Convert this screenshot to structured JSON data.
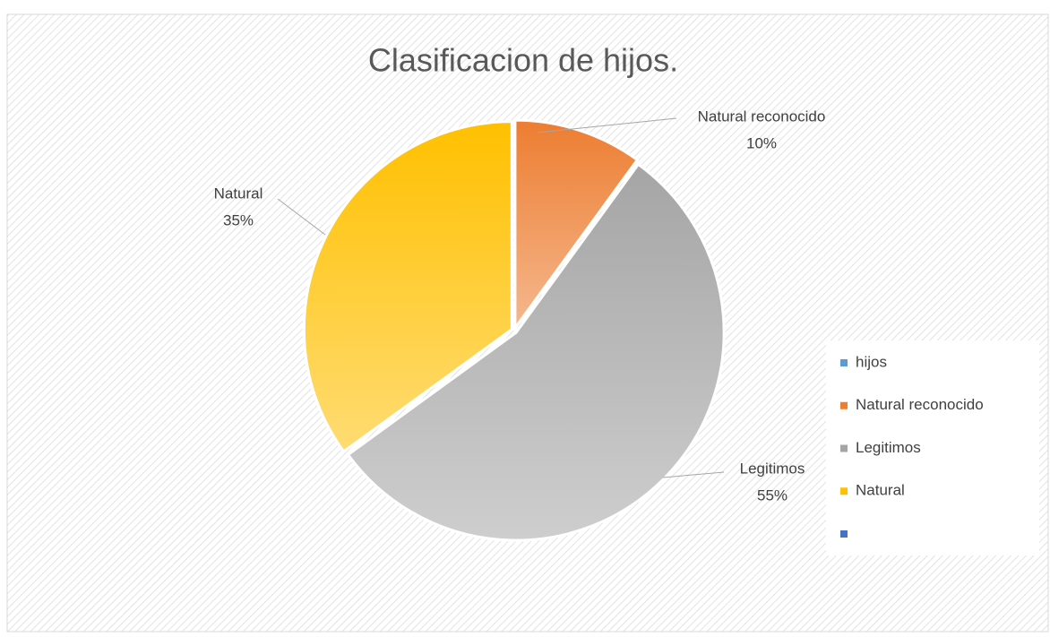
{
  "chart_data": {
    "type": "pie",
    "title": "Clasificacion de hijos.",
    "categories": [
      "hijos",
      "Natural reconocido",
      "Legitimos",
      "Natural",
      null
    ],
    "values": [
      null,
      10,
      55,
      35,
      null
    ],
    "value_labels": [
      null,
      "10%",
      "55%",
      "35%",
      null
    ],
    "colors": [
      "#5b9bd5",
      "#ed7d31",
      "#a5a5a5",
      "#ffc000",
      "#4472c4"
    ],
    "legend": "right"
  }
}
